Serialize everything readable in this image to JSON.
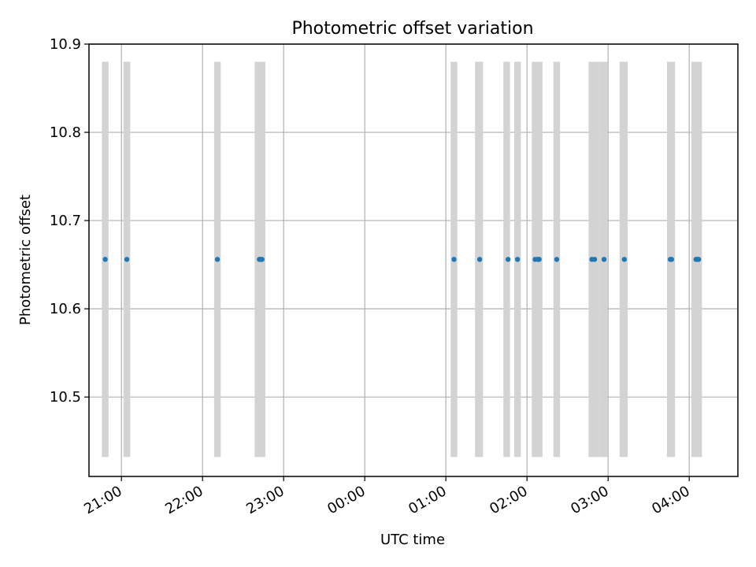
{
  "chart_data": {
    "type": "scatter",
    "title": "Photometric offset variation",
    "xlabel": "UTC time",
    "ylabel": "Photometric offset",
    "x_ticks": [
      "21:00",
      "22:00",
      "23:00",
      "00:00",
      "01:00",
      "02:00",
      "03:00",
      "04:00"
    ],
    "y_ticks": [
      "10.5",
      "10.6",
      "10.7",
      "10.8",
      "10.9"
    ],
    "xlim": [
      "20:36",
      "04:36"
    ],
    "ylim": [
      10.41,
      10.9
    ],
    "grid": true,
    "colors": {
      "points": "#1f77b4",
      "bands": "#d3d3d3",
      "grid": "#b0b0b0"
    },
    "bands_y_range": [
      10.432,
      10.88
    ],
    "bands": [
      [
        "20:47",
        "20:49"
      ],
      [
        "21:03",
        "21:05"
      ],
      [
        "22:10",
        "22:12"
      ],
      [
        "22:40",
        "22:45"
      ],
      [
        "01:05",
        "01:07"
      ],
      [
        "01:23",
        "01:26"
      ],
      [
        "01:44",
        "01:46"
      ],
      [
        "01:52",
        "01:54"
      ],
      [
        "02:05",
        "02:10"
      ],
      [
        "02:21",
        "02:23"
      ],
      [
        "02:47",
        "02:52"
      ],
      [
        "02:55",
        "02:58"
      ],
      [
        "03:10",
        "03:13"
      ],
      [
        "03:45",
        "03:48"
      ],
      [
        "04:03",
        "04:08"
      ]
    ],
    "series": [
      {
        "x": [
          "20:48",
          "21:04",
          "22:11",
          "22:42",
          "22:43",
          "22:44",
          "01:06",
          "01:25",
          "01:46",
          "01:53",
          "02:06",
          "02:08",
          "02:09",
          "02:22",
          "02:48",
          "02:50",
          "02:57",
          "03:12",
          "03:46",
          "03:47",
          "04:05",
          "04:06",
          "04:07"
        ],
        "y": [
          10.656,
          10.656,
          10.656,
          10.656,
          10.656,
          10.656,
          10.656,
          10.656,
          10.656,
          10.656,
          10.656,
          10.656,
          10.656,
          10.656,
          10.656,
          10.656,
          10.656,
          10.656,
          10.656,
          10.656,
          10.656,
          10.656,
          10.656
        ]
      }
    ]
  }
}
